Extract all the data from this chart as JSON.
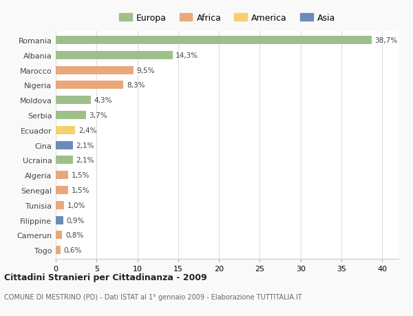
{
  "countries": [
    "Romania",
    "Albania",
    "Marocco",
    "Nigeria",
    "Moldova",
    "Serbia",
    "Ecuador",
    "Cina",
    "Ucraina",
    "Algeria",
    "Senegal",
    "Tunisia",
    "Filippine",
    "Camerun",
    "Togo"
  ],
  "values": [
    38.7,
    14.3,
    9.5,
    8.3,
    4.3,
    3.7,
    2.4,
    2.1,
    2.1,
    1.5,
    1.5,
    1.0,
    0.9,
    0.8,
    0.6
  ],
  "labels": [
    "38,7%",
    "14,3%",
    "9,5%",
    "8,3%",
    "4,3%",
    "3,7%",
    "2,4%",
    "2,1%",
    "2,1%",
    "1,5%",
    "1,5%",
    "1,0%",
    "0,9%",
    "0,8%",
    "0,6%"
  ],
  "continents": [
    "Europa",
    "Europa",
    "Africa",
    "Africa",
    "Europa",
    "Europa",
    "America",
    "Asia",
    "Europa",
    "Africa",
    "Africa",
    "Africa",
    "Asia",
    "Africa",
    "Africa"
  ],
  "colors": {
    "Europa": "#9DC08B",
    "Africa": "#E8A87C",
    "America": "#F5D06E",
    "Asia": "#6B8CBA"
  },
  "legend_order": [
    "Europa",
    "Africa",
    "America",
    "Asia"
  ],
  "xlim": [
    0,
    42
  ],
  "xticks": [
    0,
    5,
    10,
    15,
    20,
    25,
    30,
    35,
    40
  ],
  "title": "Cittadini Stranieri per Cittadinanza - 2009",
  "subtitle": "COMUNE DI MESTRINO (PD) - Dati ISTAT al 1° gennaio 2009 - Elaborazione TUTTITALIA.IT",
  "bg_color": "#f9f9f9",
  "plot_bg_color": "#ffffff",
  "grid_color": "#dddddd",
  "bar_height": 0.55
}
